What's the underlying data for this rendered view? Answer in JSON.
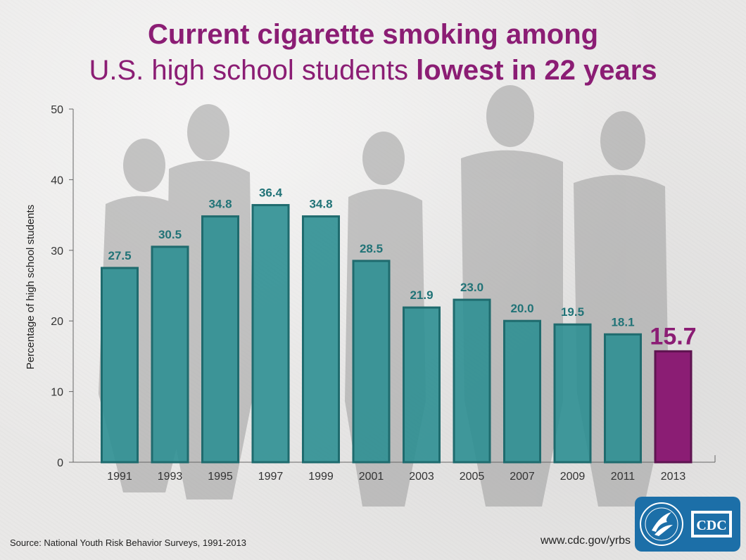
{
  "title_line1": "Current cigarette smoking among",
  "title_line2_regular": "U.S. high school students ",
  "title_line2_bold": "lowest in 22 years",
  "source_text": "Source: National Youth Risk Behavior Surveys, 1991-2013",
  "url_text": "www.cdc.gov/yrbs",
  "logo": {
    "icon": "hhs-eagle-seal-icon",
    "text": "CDC"
  },
  "colors": {
    "title": "#8b1d74",
    "bar": "#2e8f92",
    "bar_edge": "#1f6b6e",
    "highlight_bar": "#8b1d74",
    "highlight_edge": "#5e1450",
    "label": "#217377"
  },
  "chart_data": {
    "type": "bar",
    "categories": [
      "1991",
      "1993",
      "1995",
      "1997",
      "1999",
      "2001",
      "2003",
      "2005",
      "2007",
      "2009",
      "2011",
      "2013"
    ],
    "values": [
      27.5,
      30.5,
      34.8,
      36.4,
      34.8,
      28.5,
      21.9,
      23.0,
      20.0,
      19.5,
      18.1,
      15.7
    ],
    "data_labels": [
      "27.5",
      "30.5",
      "34.8",
      "36.4",
      "34.8",
      "28.5",
      "21.9",
      "23.0",
      "20.0",
      "19.5",
      "18.1",
      "15.7"
    ],
    "highlight_index": 11,
    "ylabel": "Percentage of high school students",
    "xlabel": "",
    "ylim": [
      0,
      50
    ],
    "yticks": [
      0,
      10,
      20,
      30,
      40,
      50
    ],
    "grid": false,
    "legend": "none"
  }
}
